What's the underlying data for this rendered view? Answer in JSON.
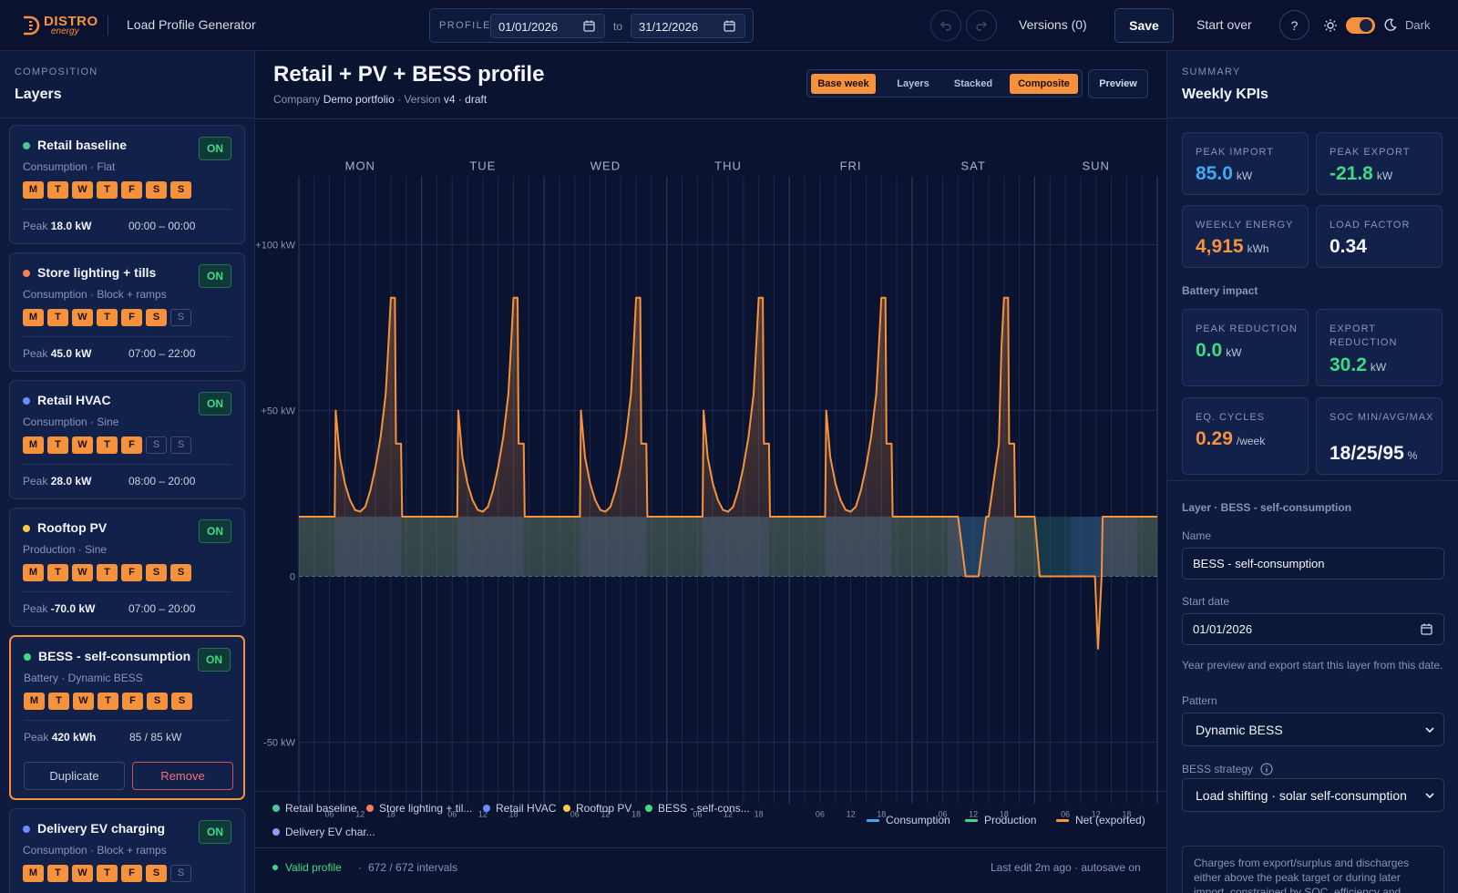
{
  "header": {
    "brand_primary": "DISTRO",
    "brand_secondary": "energy",
    "app_title": "Load Profile Generator",
    "profile_label": "PROFILE",
    "start_date": "01/01/2026",
    "to_label": "to",
    "end_date": "31/12/2026",
    "versions_label": "Versions (0)",
    "save_label": "Save",
    "start_over_label": "Start over",
    "help_label": "?",
    "theme_label": "Dark",
    "accent": "#f6923b"
  },
  "sidebar": {
    "kicker": "COMPOSITION",
    "title": "Layers",
    "layers": [
      {
        "name": "Retail baseline",
        "color": "#4fc3a1",
        "sub": "Consumption · Flat",
        "status": "ON",
        "days": [
          {
            "l": "M",
            "on": true
          },
          {
            "l": "T",
            "on": true
          },
          {
            "l": "W",
            "on": true
          },
          {
            "l": "T",
            "on": true
          },
          {
            "l": "F",
            "on": true
          },
          {
            "l": "S",
            "on": true
          },
          {
            "l": "S",
            "on": true
          }
        ],
        "peak_label": "Peak",
        "peak": "18.0 kW",
        "range": "00:00 – 00:00"
      },
      {
        "name": "Store lighting + tills",
        "color": "#f57f5b",
        "sub": "Consumption · Block + ramps",
        "status": "ON",
        "days": [
          {
            "l": "M",
            "on": true
          },
          {
            "l": "T",
            "on": true
          },
          {
            "l": "W",
            "on": true
          },
          {
            "l": "T",
            "on": true
          },
          {
            "l": "F",
            "on": true
          },
          {
            "l": "S",
            "on": true
          },
          {
            "l": "S",
            "on": false
          }
        ],
        "peak_label": "Peak",
        "peak": "45.0 kW",
        "range": "07:00 – 22:00"
      },
      {
        "name": "Retail HVAC",
        "color": "#6b8cff",
        "sub": "Consumption · Sine",
        "status": "ON",
        "days": [
          {
            "l": "M",
            "on": true
          },
          {
            "l": "T",
            "on": true
          },
          {
            "l": "W",
            "on": true
          },
          {
            "l": "T",
            "on": true
          },
          {
            "l": "F",
            "on": true
          },
          {
            "l": "S",
            "on": false
          },
          {
            "l": "S",
            "on": false
          }
        ],
        "peak_label": "Peak",
        "peak": "28.0 kW",
        "range": "08:00 – 20:00"
      },
      {
        "name": "Rooftop PV",
        "color": "#f7c948",
        "sub": "Production · Sine",
        "status": "ON",
        "days": [
          {
            "l": "M",
            "on": true
          },
          {
            "l": "T",
            "on": true
          },
          {
            "l": "W",
            "on": true
          },
          {
            "l": "T",
            "on": true
          },
          {
            "l": "F",
            "on": true
          },
          {
            "l": "S",
            "on": true
          },
          {
            "l": "S",
            "on": true
          }
        ],
        "peak_label": "Peak",
        "peak": "-70.0 kW",
        "range": "07:00 – 20:00"
      },
      {
        "name": "BESS - self-consumption",
        "color": "#3ddc84",
        "sub": "Battery · Dynamic BESS",
        "status": "ON",
        "days": [
          {
            "l": "M",
            "on": true
          },
          {
            "l": "T",
            "on": true
          },
          {
            "l": "W",
            "on": true
          },
          {
            "l": "T",
            "on": true
          },
          {
            "l": "F",
            "on": true
          },
          {
            "l": "S",
            "on": true
          },
          {
            "l": "S",
            "on": true
          }
        ],
        "peak_label": "Peak",
        "peak": "420 kWh",
        "range": "85 / 85 kW",
        "selected": true,
        "duplicate_label": "Duplicate",
        "remove_label": "Remove"
      },
      {
        "name": "Delivery EV charging",
        "color": "#6b8cff",
        "sub": "Consumption · Block + ramps",
        "status": "ON",
        "days": [
          {
            "l": "M",
            "on": true
          },
          {
            "l": "T",
            "on": true
          },
          {
            "l": "W",
            "on": true
          },
          {
            "l": "T",
            "on": true
          },
          {
            "l": "F",
            "on": true
          },
          {
            "l": "S",
            "on": true
          },
          {
            "l": "S",
            "on": false
          }
        ],
        "peak_label": "",
        "peak": "",
        "range": ""
      }
    ]
  },
  "main": {
    "title": "Retail + PV + BESS profile",
    "company_label": "Company",
    "company": "Demo portfolio",
    "version_label": "Version",
    "version": "v4 · draft",
    "views": [
      {
        "label": "Base week",
        "active": true
      },
      {
        "label": "Layers",
        "active": false
      },
      {
        "label": "Stacked",
        "active": false
      },
      {
        "label": "Composite",
        "active": true
      }
    ],
    "preview_label": "Preview",
    "legend_layers": [
      "Retail baseline",
      "Store lighting + til...",
      "Retail HVAC",
      "Rooftop PV",
      "BESS - self-cons...",
      "Delivery EV char..."
    ],
    "legend_lines": [
      {
        "label": "Consumption",
        "color": "#3fa9f5"
      },
      {
        "label": "Production",
        "color": "#3ddc84"
      },
      {
        "label": "Net (exported)",
        "color": "#f6923b"
      }
    ],
    "status_valid": "Valid profile",
    "status_intervals": "672 / 672 intervals",
    "status_edit": "Last edit 2m ago · autosave on"
  },
  "chart_data": {
    "type": "area",
    "days": [
      "MON",
      "TUE",
      "WED",
      "THU",
      "FRI",
      "SAT",
      "SUN"
    ],
    "hour_ticks": [
      "06",
      "12",
      "18"
    ],
    "y_ticks": [
      "+100 kW",
      "+50 kW",
      "0",
      "-50 kW"
    ],
    "ylim": [
      -80,
      110
    ],
    "unit": "kW",
    "series": [
      {
        "name": "Net (exported)",
        "color": "#f6923b",
        "weekday_profile_h_kw": [
          [
            0,
            18
          ],
          [
            6.5,
            18
          ],
          [
            7,
            18
          ],
          [
            7.2,
            50
          ],
          [
            8,
            36
          ],
          [
            9,
            28
          ],
          [
            10,
            23
          ],
          [
            11,
            20
          ],
          [
            12,
            19.5
          ],
          [
            13,
            21
          ],
          [
            14,
            26
          ],
          [
            15,
            33
          ],
          [
            16,
            42
          ],
          [
            17,
            55
          ],
          [
            17.5,
            69
          ],
          [
            18,
            84
          ],
          [
            18.8,
            84
          ],
          [
            19,
            40
          ],
          [
            20,
            40
          ],
          [
            20.2,
            18
          ],
          [
            24,
            18
          ]
        ],
        "sat_profile_h_kw": [
          [
            0,
            18
          ],
          [
            7,
            18
          ],
          [
            9,
            18
          ],
          [
            10.5,
            0
          ],
          [
            13,
            0
          ],
          [
            14.5,
            18
          ],
          [
            15,
            18
          ],
          [
            17,
            40
          ],
          [
            17.5,
            69
          ],
          [
            18,
            84
          ],
          [
            18.8,
            84
          ],
          [
            19,
            40
          ],
          [
            20,
            40
          ],
          [
            20.2,
            18
          ],
          [
            24,
            18
          ]
        ],
        "sun_profile_h_kw": [
          [
            0,
            18
          ],
          [
            1,
            0
          ],
          [
            11,
            0
          ],
          [
            11.8,
            0
          ],
          [
            12.4,
            -21.8
          ],
          [
            13.1,
            0
          ],
          [
            13.3,
            18
          ],
          [
            24,
            18
          ]
        ]
      },
      {
        "name": "Retail baseline",
        "color": "#4fc3a1",
        "value": 18
      }
    ]
  },
  "kpis": {
    "kicker": "SUMMARY",
    "title": "Weekly KPIs",
    "cards": [
      {
        "label": "PEAK IMPORT",
        "value": "85.0",
        "unit": "kW",
        "color": "#3fa9f5"
      },
      {
        "label": "PEAK EXPORT",
        "value": "-21.8",
        "unit": "kW",
        "color": "#3ddc84"
      },
      {
        "label": "WEEKLY ENERGY",
        "value": "4,915",
        "unit": "kWh",
        "color": "#f6923b"
      },
      {
        "label": "LOAD FACTOR",
        "value": "0.34",
        "unit": "",
        "color": "#f1f4fa"
      }
    ],
    "battery_title": "Battery impact",
    "battery_cards": [
      {
        "label": "PEAK REDUCTION",
        "value": "0.0",
        "unit": "kW",
        "color": "#3ddc84"
      },
      {
        "label": "EXPORT REDUCTION",
        "value": "30.2",
        "unit": "kW",
        "color": "#3ddc84"
      },
      {
        "label": "EQ. CYCLES",
        "value": "0.29",
        "unit": "/week",
        "color": "#f6923b"
      },
      {
        "label": "SOC MIN/AVG/MAX",
        "value": "18/25/95",
        "unit": "%",
        "color": "#f1f4fa"
      }
    ]
  },
  "editor": {
    "section": "Layer · BESS - self-consumption",
    "name_label": "Name",
    "name_value": "BESS - self-consumption",
    "start_label": "Start date",
    "start_value": "01/01/2026",
    "start_hint": "Year preview and export start this layer from this date.",
    "pattern_label": "Pattern",
    "pattern_value": "Dynamic BESS",
    "strategy_label": "BESS strategy",
    "strategy_value": "Load shifting · solar self-consumption",
    "strategy_desc": "Charges from export/surplus and discharges either above the peak target or during later import, constrained by SOC, efficiency and"
  }
}
